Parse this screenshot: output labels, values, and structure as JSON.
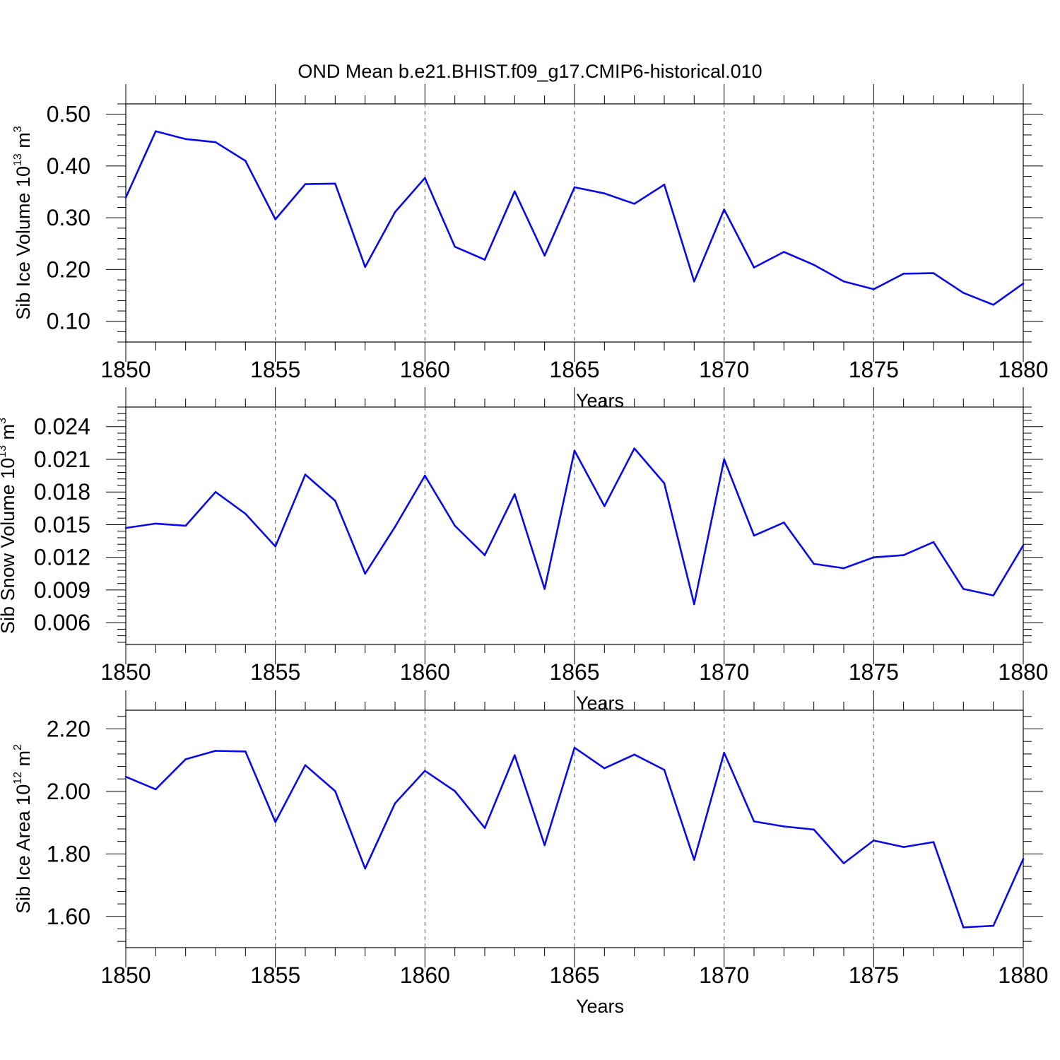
{
  "title": "OND Mean b.e21.BHIST.f09_g17.CMIP6-historical.010",
  "line_color": "#0a0ae8",
  "chart_data": [
    {
      "type": "line",
      "title": "OND Mean b.e21.BHIST.f09_g17.CMIP6-historical.010",
      "xlabel": "Years",
      "ylabel": {
        "text": "Sib Ice Volume 10",
        "sup1": "13",
        "mid": " m",
        "sup2": "3"
      },
      "xlim": [
        1850,
        1880
      ],
      "ylim": [
        0.06,
        0.52
      ],
      "x_ticks": [
        "1850",
        "1855",
        "1860",
        "1865",
        "1870",
        "1875",
        "1880"
      ],
      "y_ticks": [
        "0.10",
        "0.20",
        "0.30",
        "0.40",
        "0.50"
      ],
      "grid": "vertical dashed at major x ticks",
      "x": [
        1850,
        1851,
        1852,
        1853,
        1854,
        1855,
        1856,
        1857,
        1858,
        1859,
        1860,
        1861,
        1862,
        1863,
        1864,
        1865,
        1866,
        1867,
        1868,
        1869,
        1870,
        1871,
        1872,
        1873,
        1874,
        1875,
        1876,
        1877,
        1878,
        1879,
        1880
      ],
      "values": [
        0.339,
        0.467,
        0.452,
        0.446,
        0.41,
        0.297,
        0.365,
        0.366,
        0.205,
        0.311,
        0.377,
        0.244,
        0.219,
        0.351,
        0.227,
        0.359,
        0.347,
        0.327,
        0.364,
        0.177,
        0.316,
        0.204,
        0.234,
        0.209,
        0.177,
        0.162,
        0.192,
        0.193,
        0.155,
        0.132,
        0.173
      ]
    },
    {
      "type": "line",
      "xlabel": "Years",
      "ylabel": {
        "text": "Sib Snow Volume 10",
        "sup1": "13",
        "mid": " m",
        "sup2": "3"
      },
      "xlim": [
        1850,
        1880
      ],
      "ylim": [
        0.004,
        0.0258
      ],
      "x_ticks": [
        "1850",
        "1855",
        "1860",
        "1865",
        "1870",
        "1875",
        "1880"
      ],
      "y_ticks": [
        "0.006",
        "0.009",
        "0.012",
        "0.015",
        "0.018",
        "0.021",
        "0.024"
      ],
      "grid": "vertical dashed at major x ticks",
      "x": [
        1850,
        1851,
        1852,
        1853,
        1854,
        1855,
        1856,
        1857,
        1858,
        1859,
        1860,
        1861,
        1862,
        1863,
        1864,
        1865,
        1866,
        1867,
        1868,
        1869,
        1870,
        1871,
        1872,
        1873,
        1874,
        1875,
        1876,
        1877,
        1878,
        1879,
        1880
      ],
      "values": [
        0.0147,
        0.0151,
        0.0149,
        0.018,
        0.016,
        0.013,
        0.0196,
        0.0172,
        0.0105,
        0.0148,
        0.0195,
        0.0149,
        0.0122,
        0.0178,
        0.0091,
        0.0218,
        0.0167,
        0.022,
        0.0188,
        0.0077,
        0.021,
        0.014,
        0.0152,
        0.0114,
        0.011,
        0.012,
        0.0122,
        0.0134,
        0.0091,
        0.0085,
        0.0131
      ]
    },
    {
      "type": "line",
      "xlabel": "Years",
      "ylabel": {
        "text": "Sib Ice Area 10",
        "sup1": "12",
        "mid": " m",
        "sup2": "2"
      },
      "xlim": [
        1850,
        1880
      ],
      "ylim": [
        1.5,
        2.26
      ],
      "x_ticks": [
        "1850",
        "1855",
        "1860",
        "1865",
        "1870",
        "1875",
        "1880"
      ],
      "y_ticks": [
        "1.60",
        "1.80",
        "2.00",
        "2.20"
      ],
      "grid": "vertical dashed at major x ticks",
      "x": [
        1850,
        1851,
        1852,
        1853,
        1854,
        1855,
        1856,
        1857,
        1858,
        1859,
        1860,
        1861,
        1862,
        1863,
        1864,
        1865,
        1866,
        1867,
        1868,
        1869,
        1870,
        1871,
        1872,
        1873,
        1874,
        1875,
        1876,
        1877,
        1878,
        1879,
        1880
      ],
      "values": [
        2.047,
        2.007,
        2.103,
        2.13,
        2.128,
        1.902,
        2.084,
        2.001,
        1.753,
        1.962,
        2.066,
        2.001,
        1.883,
        2.116,
        1.828,
        2.14,
        2.074,
        2.118,
        2.069,
        1.781,
        2.124,
        1.904,
        1.888,
        1.878,
        1.77,
        1.843,
        1.822,
        1.838,
        1.565,
        1.57,
        1.784
      ]
    }
  ]
}
